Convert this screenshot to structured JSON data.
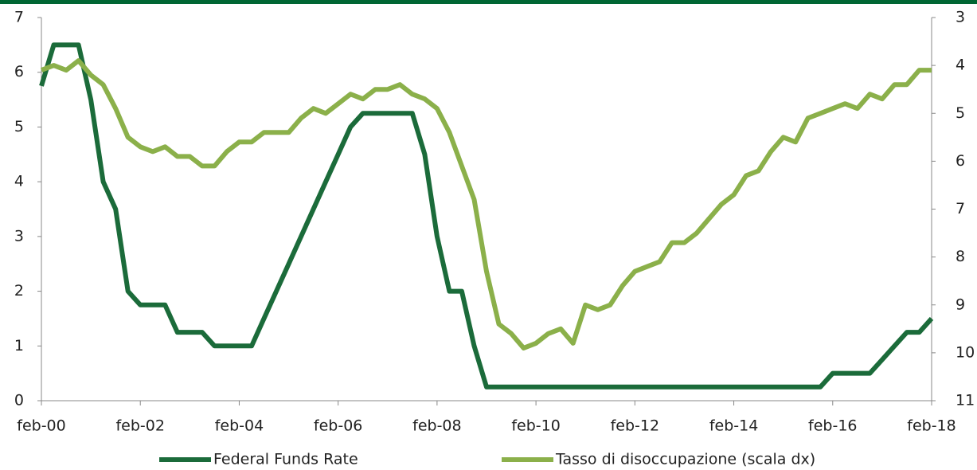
{
  "chart_data": {
    "type": "line",
    "x": [
      "2000-02",
      "2000-05",
      "2000-08",
      "2000-11",
      "2001-02",
      "2001-05",
      "2001-08",
      "2001-11",
      "2002-02",
      "2002-05",
      "2002-08",
      "2002-11",
      "2003-02",
      "2003-05",
      "2003-08",
      "2003-11",
      "2004-02",
      "2004-05",
      "2004-08",
      "2004-11",
      "2005-02",
      "2005-05",
      "2005-08",
      "2005-11",
      "2006-02",
      "2006-05",
      "2006-08",
      "2006-11",
      "2007-02",
      "2007-05",
      "2007-08",
      "2007-11",
      "2008-02",
      "2008-05",
      "2008-08",
      "2008-11",
      "2009-02",
      "2009-05",
      "2009-08",
      "2009-11",
      "2010-02",
      "2010-05",
      "2010-08",
      "2010-11",
      "2011-02",
      "2011-05",
      "2011-08",
      "2011-11",
      "2012-02",
      "2012-05",
      "2012-08",
      "2012-11",
      "2013-02",
      "2013-05",
      "2013-08",
      "2013-11",
      "2014-02",
      "2014-05",
      "2014-08",
      "2014-11",
      "2015-02",
      "2015-05",
      "2015-08",
      "2015-11",
      "2016-02",
      "2016-05",
      "2016-08",
      "2016-11",
      "2017-02",
      "2017-05",
      "2017-08",
      "2017-11",
      "2018-02"
    ],
    "series": [
      {
        "name": "Federal Funds Rate",
        "color": "#1b6b3a",
        "values": [
          5.75,
          6.5,
          6.5,
          6.5,
          5.5,
          4.0,
          3.5,
          2.0,
          1.75,
          1.75,
          1.75,
          1.25,
          1.25,
          1.25,
          1.0,
          1.0,
          1.0,
          1.0,
          1.5,
          2.0,
          2.5,
          3.0,
          3.5,
          4.0,
          4.5,
          5.0,
          5.25,
          5.25,
          5.25,
          5.25,
          5.25,
          4.5,
          3.0,
          2.0,
          2.0,
          1.0,
          0.25,
          0.25,
          0.25,
          0.25,
          0.25,
          0.25,
          0.25,
          0.25,
          0.25,
          0.25,
          0.25,
          0.25,
          0.25,
          0.25,
          0.25,
          0.25,
          0.25,
          0.25,
          0.25,
          0.25,
          0.25,
          0.25,
          0.25,
          0.25,
          0.25,
          0.25,
          0.25,
          0.25,
          0.5,
          0.5,
          0.5,
          0.5,
          0.75,
          1.0,
          1.25,
          1.25,
          1.5
        ]
      },
      {
        "name": "Tasso di disoccupazione (scala dx)",
        "color": "#8bb04a",
        "axis": "y2",
        "values": [
          4.1,
          4.0,
          4.1,
          3.9,
          4.2,
          4.4,
          4.9,
          5.5,
          5.7,
          5.8,
          5.7,
          5.9,
          5.9,
          6.1,
          6.1,
          5.8,
          5.6,
          5.6,
          5.4,
          5.4,
          5.4,
          5.1,
          4.9,
          5.0,
          4.8,
          4.6,
          4.7,
          4.5,
          4.5,
          4.4,
          4.6,
          4.7,
          4.9,
          5.4,
          6.1,
          6.8,
          8.3,
          9.4,
          9.6,
          9.9,
          9.8,
          9.6,
          9.5,
          9.8,
          9.0,
          9.1,
          9.0,
          8.6,
          8.3,
          8.2,
          8.1,
          7.7,
          7.7,
          7.5,
          7.2,
          6.9,
          6.7,
          6.3,
          6.2,
          5.8,
          5.5,
          5.6,
          5.1,
          5.0,
          4.9,
          4.8,
          4.9,
          4.6,
          4.7,
          4.4,
          4.4,
          4.1,
          4.1
        ]
      }
    ],
    "ylim": [
      0,
      7
    ],
    "yticks": [
      0,
      1,
      2,
      3,
      4,
      5,
      6,
      7
    ],
    "y2lim": [
      11,
      3
    ],
    "y2ticks": [
      3,
      4,
      5,
      6,
      7,
      8,
      9,
      10,
      11
    ],
    "xticks": [
      {
        "value": "2000-02",
        "label": "feb-00"
      },
      {
        "value": "2002-02",
        "label": "feb-02"
      },
      {
        "value": "2004-02",
        "label": "feb-04"
      },
      {
        "value": "2006-02",
        "label": "feb-06"
      },
      {
        "value": "2008-02",
        "label": "feb-08"
      },
      {
        "value": "2010-02",
        "label": "feb-10"
      },
      {
        "value": "2012-02",
        "label": "feb-12"
      },
      {
        "value": "2014-02",
        "label": "feb-14"
      },
      {
        "value": "2016-02",
        "label": "feb-16"
      },
      {
        "value": "2018-02",
        "label": "feb-18"
      }
    ],
    "legend": "bottom"
  }
}
